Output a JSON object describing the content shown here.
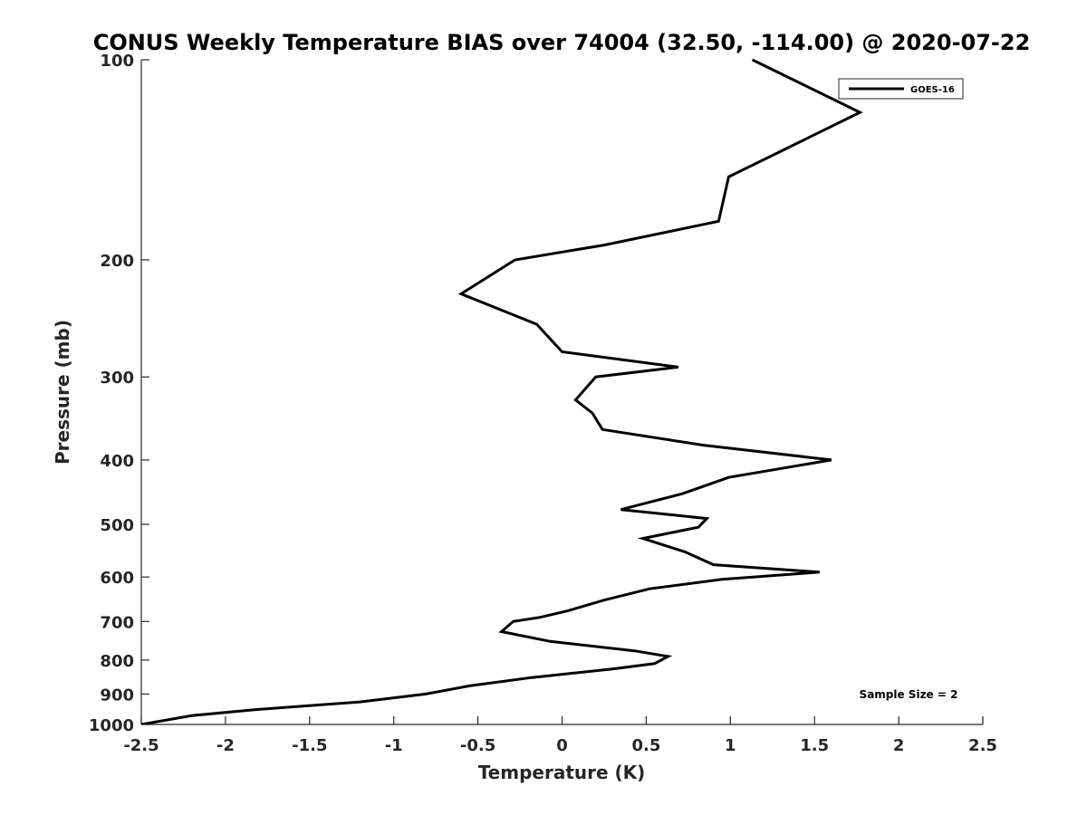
{
  "chart_data": {
    "type": "line",
    "title": "CONUS Weekly Temperature BIAS over 74004 (32.50, -114.00) @ 2020-07-22",
    "xlabel": "Temperature (K)",
    "ylabel": "Pressure (mb)",
    "xlim": [
      -2.5,
      2.5
    ],
    "ylim": [
      100,
      1000
    ],
    "y_scale": "log",
    "y_reversed": true,
    "grid": false,
    "legend_position": "top-right",
    "x_ticks": [
      "-2.5",
      "-2",
      "-1.5",
      "-1",
      "-0.5",
      "0",
      "0.5",
      "1",
      "1.5",
      "2",
      "2.5"
    ],
    "y_ticks": [
      "100",
      "200",
      "300",
      "400",
      "500",
      "600",
      "700",
      "800",
      "900",
      "1000"
    ],
    "series": [
      {
        "name": "GOES-16",
        "color": "#000000",
        "x": [
          1.13,
          1.77,
          0.99,
          0.93,
          0.25,
          -0.28,
          -0.6,
          -0.15,
          0.0,
          0.69,
          0.2,
          0.08,
          0.18,
          0.24,
          0.84,
          1.6,
          0.99,
          0.71,
          0.35,
          0.86,
          0.81,
          0.48,
          0.73,
          0.9,
          1.53,
          0.95,
          0.52,
          0.25,
          0.03,
          -0.13,
          -0.29,
          -0.36,
          -0.07,
          0.43,
          0.63,
          0.55,
          0.3,
          -0.18,
          -0.55,
          -0.81,
          -1.2,
          -1.82,
          -2.2,
          -2.5
        ],
        "y": [
          100,
          120,
          150,
          175,
          190,
          200,
          225,
          250,
          275,
          290,
          300,
          325,
          340,
          360,
          380,
          400,
          425,
          450,
          475,
          490,
          505,
          525,
          550,
          575,
          590,
          605,
          625,
          650,
          675,
          690,
          700,
          725,
          750,
          775,
          790,
          810,
          825,
          850,
          875,
          900,
          925,
          950,
          970,
          1000
        ]
      }
    ],
    "annotations": [
      "Sample Size = 2"
    ]
  }
}
